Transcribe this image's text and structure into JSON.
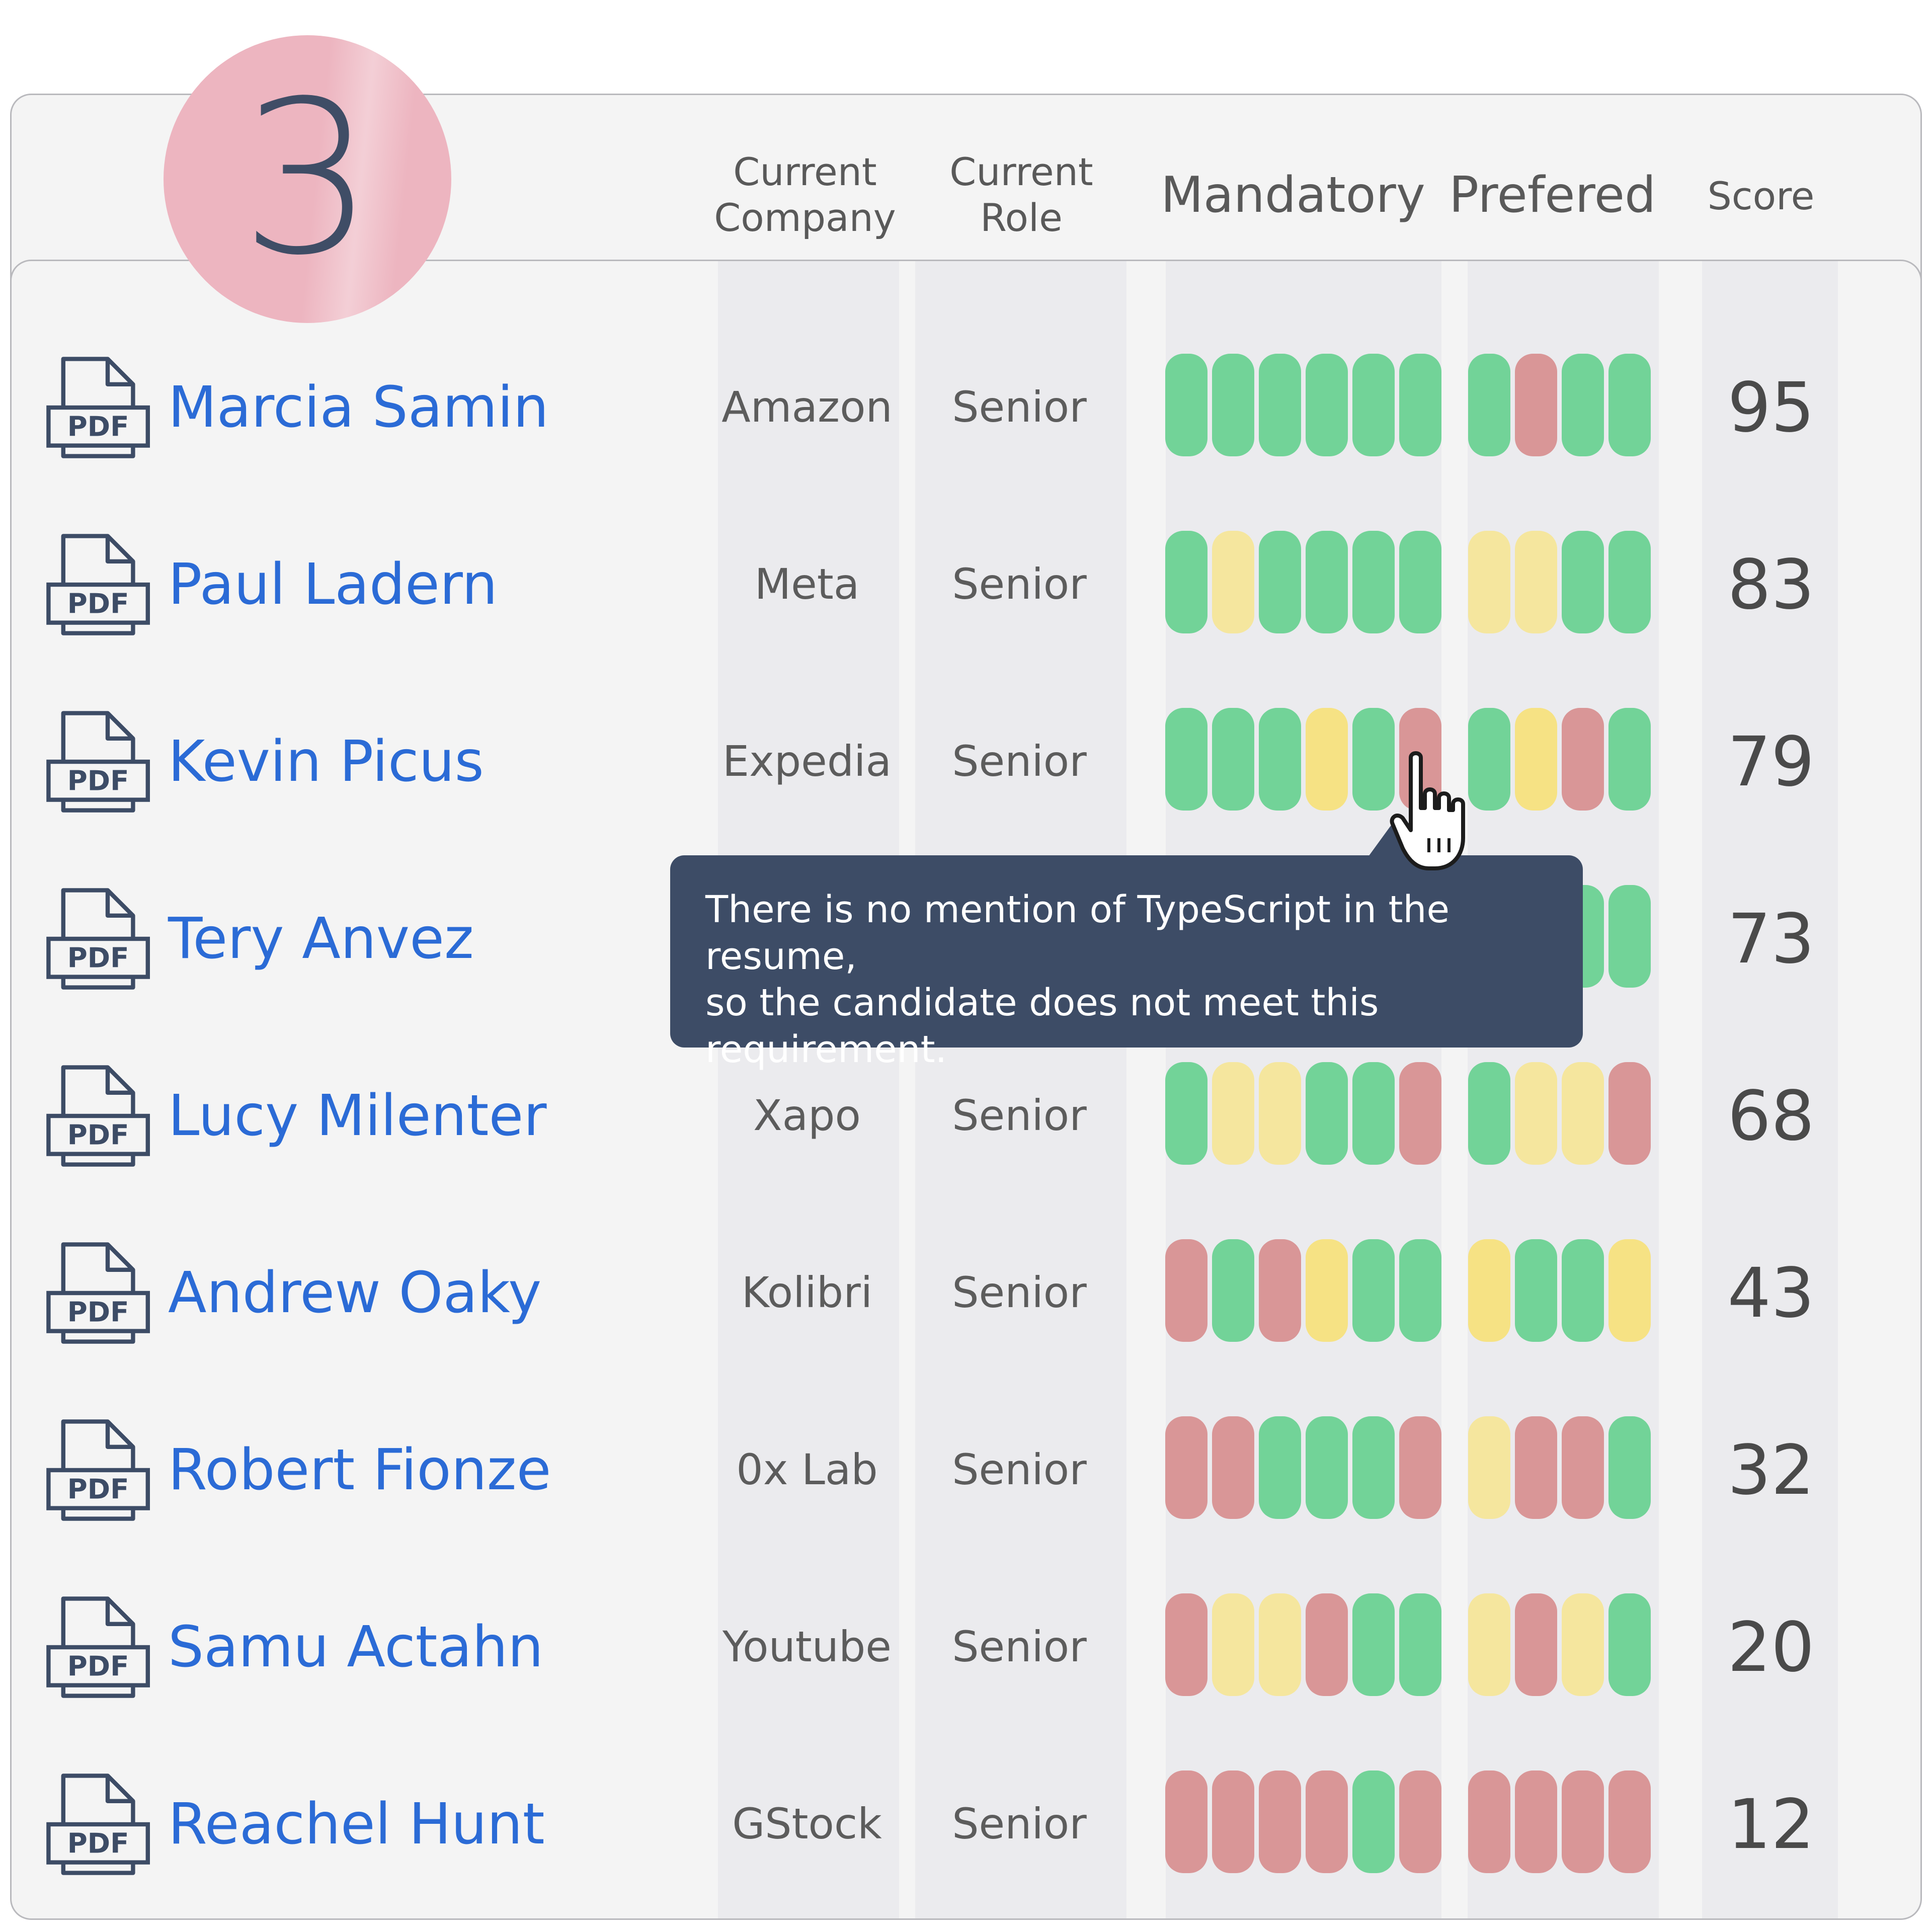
{
  "step_badge": "3",
  "columns": {
    "company": [
      "Current",
      "Company"
    ],
    "role": [
      "Current",
      "Role"
    ],
    "mandatory": "Mandatory",
    "preferred": "Prefered",
    "score": "Score"
  },
  "pdf_icon_label": "PDF",
  "colors": {
    "green": "#72d398",
    "yellow": "#f5e69e",
    "yellow_strong": "#f6e284",
    "red": "#d99697",
    "name_link": "#2b6bd6",
    "tooltip_bg": "#3d4c66",
    "badge_bg": "#edb5c0"
  },
  "candidates": [
    {
      "name": "Marcia Samin",
      "company": "Amazon",
      "role": "Senior",
      "mandatory": [
        "g",
        "g",
        "g",
        "g",
        "g",
        "g"
      ],
      "preferred": [
        "g",
        "r",
        "g",
        "g"
      ],
      "score": "95"
    },
    {
      "name": "Paul Ladern",
      "company": "Meta",
      "role": "Senior",
      "mandatory": [
        "g",
        "y",
        "g",
        "g",
        "g",
        "g"
      ],
      "preferred": [
        "y",
        "y",
        "g",
        "g"
      ],
      "score": "83"
    },
    {
      "name": "Kevin Picus",
      "company": "Expedia",
      "role": "Senior",
      "mandatory": [
        "g",
        "g",
        "g",
        "Y",
        "g",
        "r"
      ],
      "preferred": [
        "g",
        "Y",
        "r",
        "g"
      ],
      "score": "79"
    },
    {
      "name": "Tery Anvez",
      "company": "",
      "role": "",
      "mandatory": [],
      "preferred": [
        "g",
        "g"
      ],
      "score": "73"
    },
    {
      "name": "Lucy Milenter",
      "company": "Xapo",
      "role": "Senior",
      "mandatory": [
        "g",
        "y",
        "y",
        "g",
        "g",
        "r"
      ],
      "preferred": [
        "g",
        "y",
        "y",
        "r"
      ],
      "score": "68"
    },
    {
      "name": "Andrew Oaky",
      "company": "Kolibri",
      "role": "Senior",
      "mandatory": [
        "r",
        "g",
        "r",
        "Y",
        "g",
        "g"
      ],
      "preferred": [
        "Y",
        "g",
        "g",
        "Y"
      ],
      "score": "43"
    },
    {
      "name": "Robert Fionze",
      "company": "0x Lab",
      "role": "Senior",
      "mandatory": [
        "r",
        "r",
        "g",
        "g",
        "g",
        "r"
      ],
      "preferred": [
        "y",
        "r",
        "r",
        "g"
      ],
      "score": "32"
    },
    {
      "name": "Samu Actahn",
      "company": "Youtube",
      "role": "Senior",
      "mandatory": [
        "r",
        "y",
        "y",
        "r",
        "g",
        "g"
      ],
      "preferred": [
        "y",
        "r",
        "y",
        "g"
      ],
      "score": "20"
    },
    {
      "name": "Reachel Hunt",
      "company": "GStock",
      "role": "Senior",
      "mandatory": [
        "r",
        "r",
        "r",
        "r",
        "g",
        "r"
      ],
      "preferred": [
        "r",
        "r",
        "r",
        "r"
      ],
      "score": "12"
    }
  ],
  "tooltip": {
    "line1": "There is no mention of TypeScript in the resume,",
    "line2": "so the candidate does not meet this requirement."
  }
}
